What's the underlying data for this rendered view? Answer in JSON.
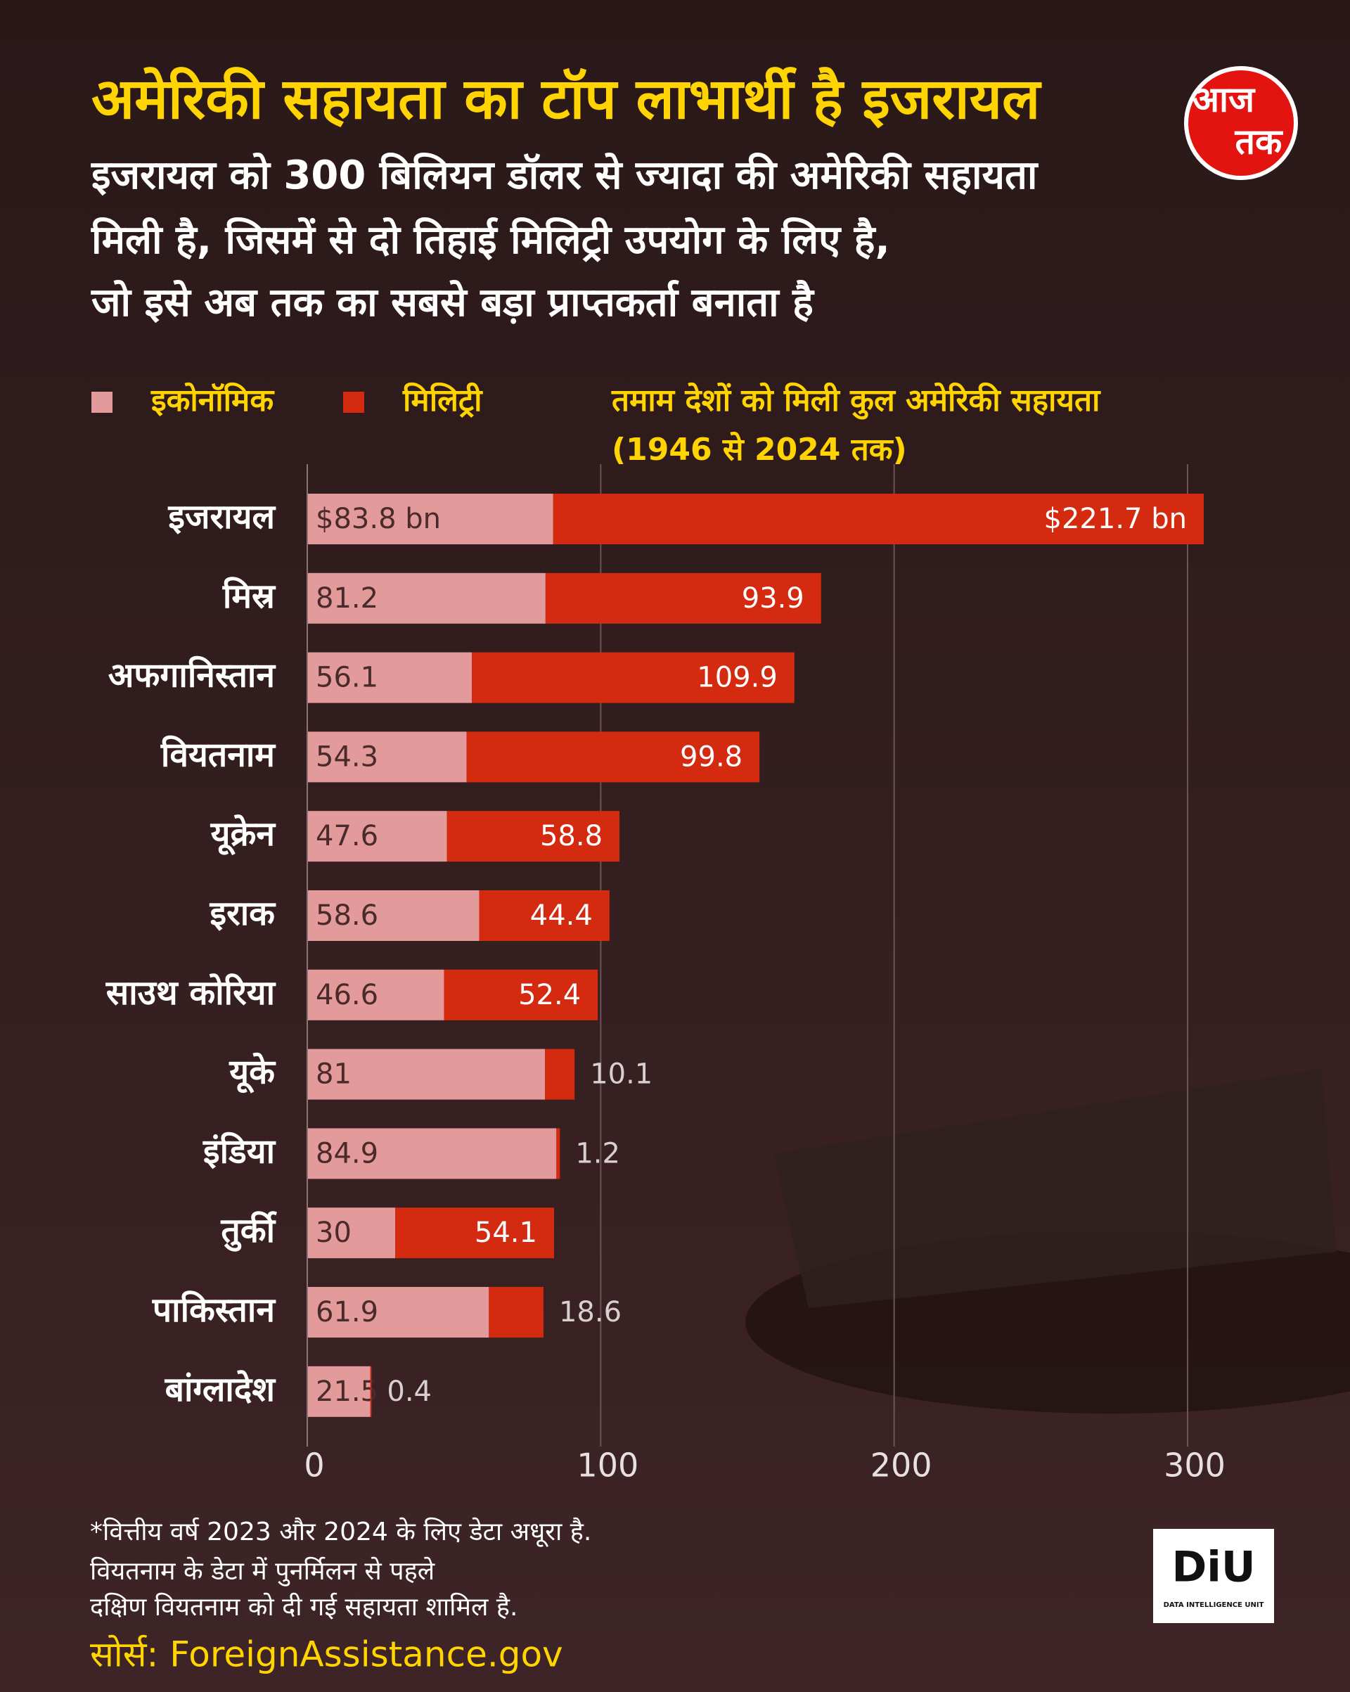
{
  "chart_data": {
    "type": "stacked-bar-horizontal",
    "title": "अमेरिकी सहायता का टॉप लाभार्थी है इजरायल",
    "subtitle": [
      "इजरायल को 300 बिलियन डॉलर से ज्यादा की अमेरिकी सहायता",
      "मिली है, जिसमें से दो तिहाई मिलिट्री उपयोग के लिए है,",
      "जो इसे अब तक का सबसे बड़ा प्राप्तकर्ता बनाता है"
    ],
    "chart_label": [
      "तमाम देशों को मिली कुल अमेरिकी सहायता",
      "(1946 से 2024 तक)"
    ],
    "categories": [
      "इजरायल",
      "मिस्र",
      "अफगानिस्तान",
      "वियतनाम",
      "यूक्रेन",
      "इराक",
      "साउथ कोरिया",
      "यूके",
      "इंडिया",
      "तुर्की",
      "पाकिस्तान",
      "बांग्लादेश"
    ],
    "series": [
      {
        "name": "इकोनॉमिक",
        "color": "#e39a9a",
        "values": [
          83.8,
          81.2,
          56.1,
          54.3,
          47.6,
          58.6,
          46.6,
          81,
          84.9,
          30,
          61.9,
          21.5
        ],
        "value_labels": [
          "$83.8 bn",
          "81.2",
          "56.1",
          "54.3",
          "47.6",
          "58.6",
          "46.6",
          "81",
          "84.9",
          "30",
          "61.9",
          "21.5"
        ]
      },
      {
        "name": "मिलिट्री",
        "color": "#d42a0f",
        "values": [
          221.7,
          93.9,
          109.9,
          99.8,
          58.8,
          44.4,
          52.4,
          10.1,
          1.2,
          54.1,
          18.6,
          0.4
        ],
        "value_labels": [
          "$221.7 bn",
          "93.9",
          "109.9",
          "99.8",
          "58.8",
          "44.4",
          "52.4",
          "10.1",
          "1.2",
          "54.1",
          "18.6",
          "0.4"
        ]
      }
    ],
    "xlim": [
      0,
      300
    ],
    "xticks": [
      0,
      100,
      200,
      300
    ],
    "grid": true,
    "notes": [
      "*वित्तीय वर्ष 2023 और 2024 के लिए डेटा अधूरा है.",
      "वियतनाम के डेटा में पुनर्मिलन से पहले",
      "दक्षिण वियतनाम को दी गई सहायता शामिल है."
    ],
    "source": "सोर्स: ForeignAssistance.gov"
  },
  "logos": {
    "aajtak": [
      "आज",
      "तक"
    ],
    "diu": "DiU",
    "diu_sub": "DATA INTELLIGENCE UNIT"
  }
}
